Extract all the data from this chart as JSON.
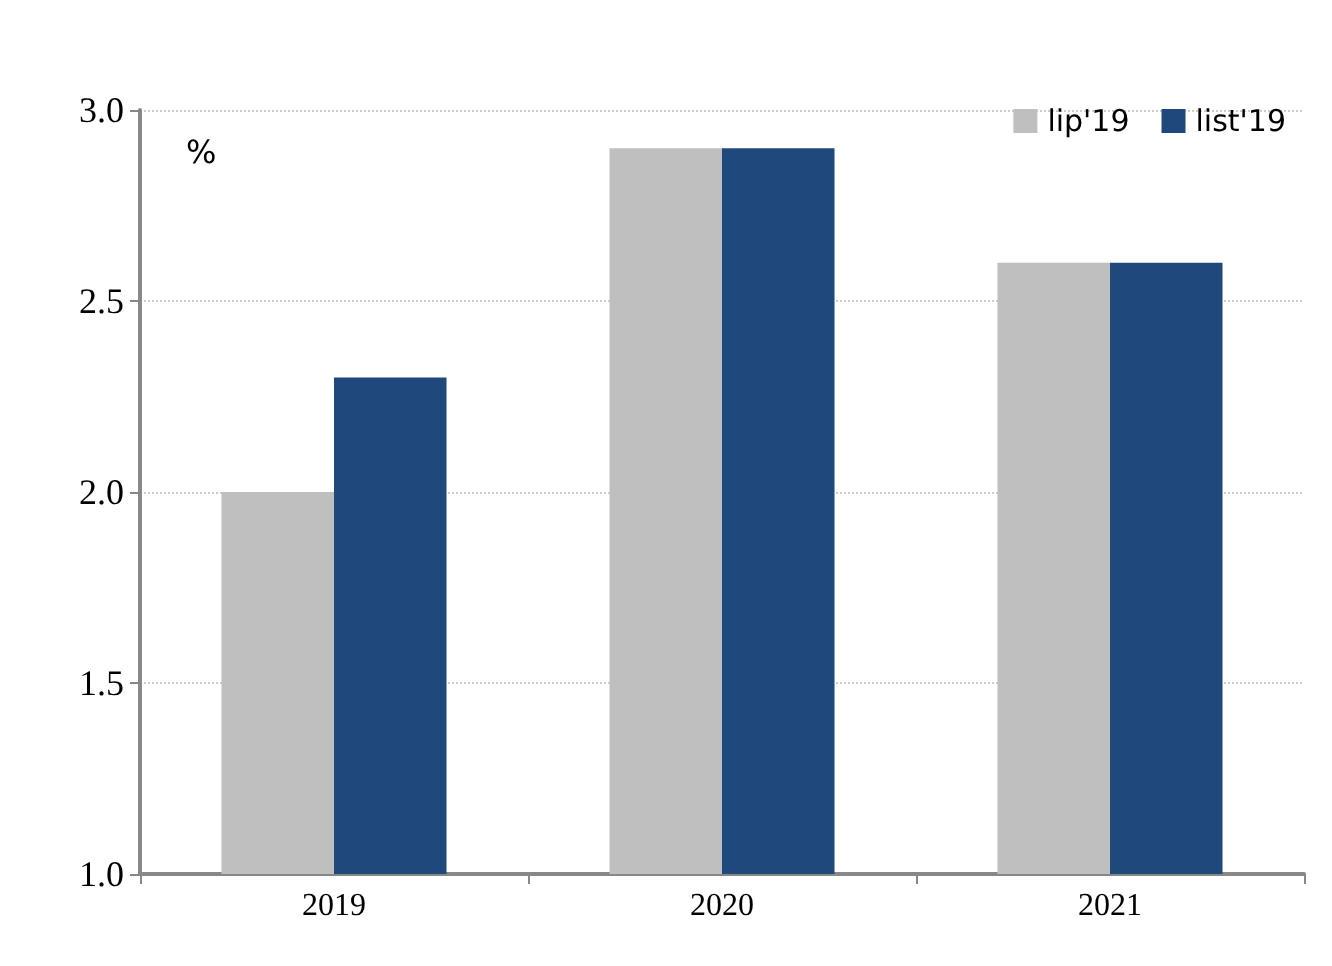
{
  "chart_data": {
    "type": "bar",
    "ylabel": "%",
    "categories": [
      "2019",
      "2020",
      "2021"
    ],
    "series": [
      {
        "name": "lip'19",
        "color": "#bfbfbf",
        "values": [
          2.0,
          2.9,
          2.6
        ]
      },
      {
        "name": "list'19",
        "color": "#1f497d",
        "values": [
          2.3,
          2.9,
          2.6
        ]
      }
    ],
    "ylim": [
      1.0,
      3.0
    ],
    "yticks": [
      {
        "value": 1.0,
        "label": "1.0"
      },
      {
        "value": 1.5,
        "label": "1.5"
      },
      {
        "value": 2.0,
        "label": "2.0"
      },
      {
        "value": 2.5,
        "label": "2.5"
      },
      {
        "value": 3.0,
        "label": "3.0"
      }
    ],
    "grid": "y",
    "legend": "top right"
  }
}
